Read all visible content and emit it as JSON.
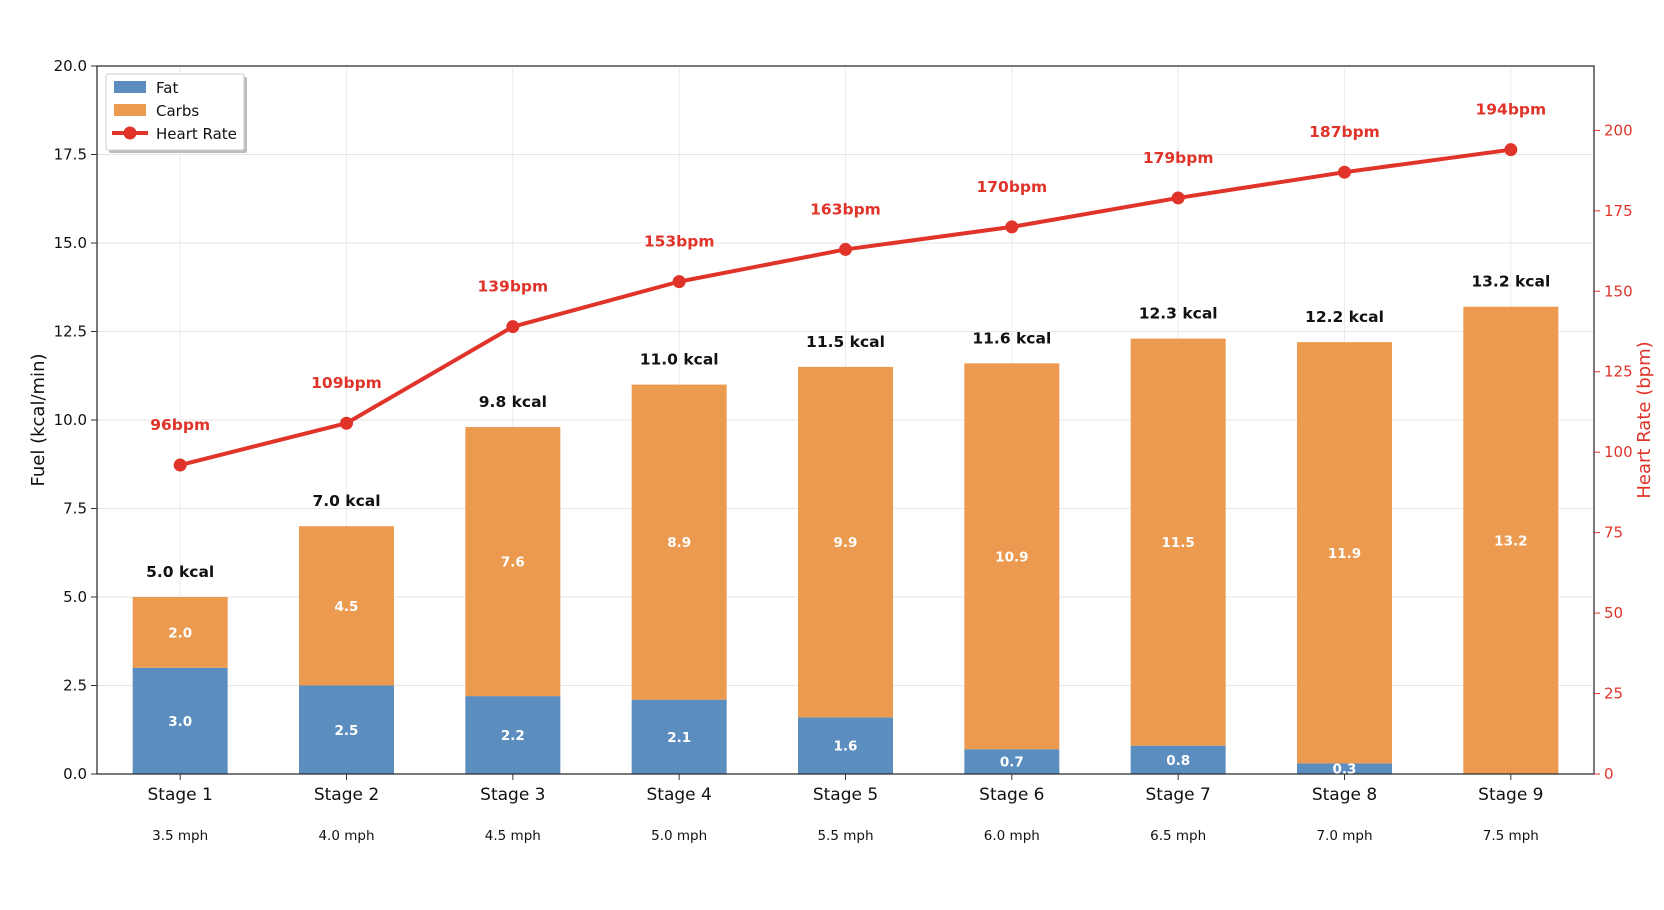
{
  "chart_data": {
    "type": "bar",
    "subtype": "stacked-bar-with-line-secondary-axis",
    "categories": [
      "Stage 1",
      "Stage 2",
      "Stage 3",
      "Stage 4",
      "Stage 5",
      "Stage 6",
      "Stage 7",
      "Stage 8",
      "Stage 9"
    ],
    "sub_categories": [
      "3.5 mph",
      "4.0 mph",
      "4.5 mph",
      "5.0 mph",
      "5.5 mph",
      "6.0 mph",
      "6.5 mph",
      "7.0 mph",
      "7.5 mph"
    ],
    "series": [
      {
        "name": "Fat",
        "type": "bar",
        "color": "#5b8dbf",
        "values": [
          3.0,
          2.5,
          2.2,
          2.1,
          1.6,
          0.7,
          0.8,
          0.3,
          0.0
        ],
        "labels": [
          "3.0",
          "2.5",
          "2.2",
          "2.1",
          "1.6",
          "0.7",
          "0.8",
          "0.3",
          ""
        ]
      },
      {
        "name": "Carbs",
        "type": "bar",
        "color": "#ec9a4f",
        "values": [
          2.0,
          4.5,
          7.6,
          8.9,
          9.9,
          10.9,
          11.5,
          11.9,
          13.2
        ],
        "labels": [
          "2.0",
          "4.5",
          "7.6",
          "8.9",
          "9.9",
          "10.9",
          "11.5",
          "11.9",
          "13.2"
        ]
      },
      {
        "name": "Heart Rate",
        "type": "line",
        "axis": "right",
        "color": "#e0342a",
        "values": [
          96,
          109,
          139,
          153,
          163,
          170,
          179,
          187,
          194
        ],
        "labels": [
          "96bpm",
          "109bpm",
          "139bpm",
          "153bpm",
          "163bpm",
          "170bpm",
          "179bpm",
          "187bpm",
          "194bpm"
        ]
      }
    ],
    "totals": [
      5.0,
      7.0,
      9.8,
      11.0,
      11.5,
      11.6,
      12.3,
      12.2,
      13.2
    ],
    "total_labels": [
      "5.0 kcal",
      "7.0 kcal",
      "9.8 kcal",
      "11.0 kcal",
      "11.5 kcal",
      "11.6 kcal",
      "12.3 kcal",
      "12.2 kcal",
      "13.2 kcal"
    ],
    "ylabel": "Fuel (kcal/min)",
    "ylim": [
      0,
      20
    ],
    "yticks": [
      "0.0",
      "2.5",
      "5.0",
      "7.5",
      "10.0",
      "12.5",
      "15.0",
      "17.5",
      "20.0"
    ],
    "y2label": "Heart Rate (bpm)",
    "y2lim": [
      0,
      220
    ],
    "y2ticks": [
      "0",
      "25",
      "50",
      "75",
      "100",
      "125",
      "150",
      "175",
      "200"
    ],
    "grid": true,
    "legend_position": "top-left"
  }
}
